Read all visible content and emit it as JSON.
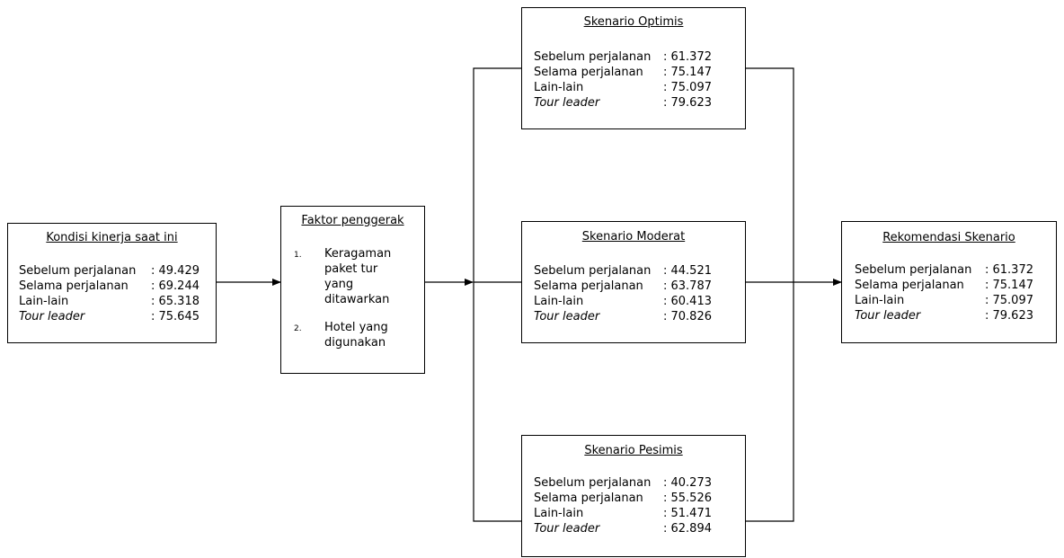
{
  "current_condition": {
    "title": "Kondisi kinerja saat ini",
    "rows": [
      {
        "label": "Sebelum perjalanan",
        "value": ": 49.429",
        "italic": false
      },
      {
        "label": "Selama perjalanan",
        "value": ": 69.244",
        "italic": false
      },
      {
        "label": "Lain-lain",
        "value": ": 65.318",
        "italic": false
      },
      {
        "label": "Tour leader",
        "value": ": 75.645",
        "italic": true
      }
    ]
  },
  "drivers": {
    "title": "Faktor penggerak",
    "items": [
      {
        "num": "1.",
        "text": "Keragaman paket tur yang ditawarkan"
      },
      {
        "num": "2.",
        "text": "Hotel yang digunakan"
      }
    ]
  },
  "scenario_optimistic": {
    "title": "Skenario Optimis",
    "rows": [
      {
        "label": "Sebelum perjalanan",
        "value": ": 61.372",
        "italic": false
      },
      {
        "label": "Selama perjalanan",
        "value": ": 75.147",
        "italic": false
      },
      {
        "label": "Lain-lain",
        "value": ": 75.097",
        "italic": false
      },
      {
        "label": "Tour leader",
        "value": ": 79.623",
        "italic": true
      }
    ]
  },
  "scenario_moderate": {
    "title": "Skenario Moderat",
    "rows": [
      {
        "label": "Sebelum perjalanan",
        "value": ": 44.521",
        "italic": false
      },
      {
        "label": "Selama perjalanan",
        "value": ": 63.787",
        "italic": false
      },
      {
        "label": "Lain-lain",
        "value": ": 60.413",
        "italic": false
      },
      {
        "label": "Tour leader",
        "value": ": 70.826",
        "italic": true
      }
    ]
  },
  "scenario_pessimistic": {
    "title": "Skenario Pesimis",
    "rows": [
      {
        "label": "Sebelum perjalanan",
        "value": ": 40.273",
        "italic": false
      },
      {
        "label": "Selama perjalanan",
        "value": ": 55.526",
        "italic": false
      },
      {
        "label": "Lain-lain",
        "value": ": 51.471",
        "italic": false
      },
      {
        "label": "Tour leader",
        "value": ": 62.894",
        "italic": true
      }
    ]
  },
  "recommendation": {
    "title": "Rekomendasi Skenario",
    "rows": [
      {
        "label": "Sebelum perjalanan",
        "value": ": 61.372",
        "italic": false
      },
      {
        "label": "Selama perjalanan",
        "value": ": 75.147",
        "italic": false
      },
      {
        "label": "Lain-lain",
        "value": ": 75.097",
        "italic": false
      },
      {
        "label": "Tour leader",
        "value": ": 79.623",
        "italic": true
      }
    ]
  }
}
